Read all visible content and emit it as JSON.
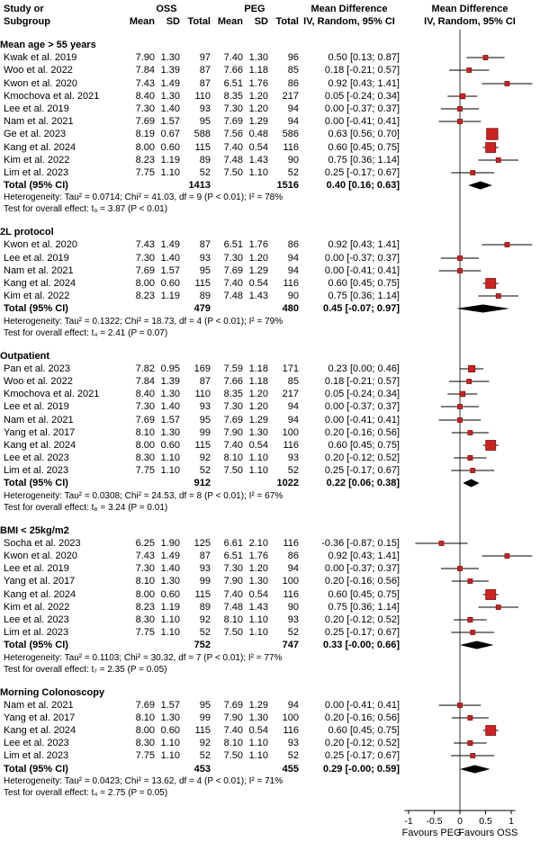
{
  "header": {
    "study_line1": "Study or",
    "study_line2": "Subgroup",
    "group1": "OSS",
    "group2": "PEG",
    "mean": "Mean",
    "sd": "SD",
    "total": "Total",
    "md": "Mean Difference",
    "model": "IV, Random, 95% CI"
  },
  "colors": {
    "marker_fill": "#cc2222",
    "marker_stroke": "#801010",
    "diamond": "#000000",
    "ci_line": "#000000",
    "zero_line": "#333333"
  },
  "chart_data": {
    "type": "forest",
    "effect_measure": "Mean Difference",
    "model": "IV, Random, 95% CI",
    "axis": {
      "min": -1.2,
      "max": 1.2,
      "tick_values": [
        -1,
        -0.5,
        0,
        0.5,
        1
      ],
      "ticks": [
        "-1",
        "-0.5",
        "0",
        "0.5",
        "1"
      ],
      "favours_left": "Favours PEG",
      "favours_right": "Favours OSS"
    },
    "subgroups": [
      {
        "title": "Mean age > 55 years",
        "studies": [
          {
            "study": "Kwak et al. 2019",
            "oss": [
              "7.90",
              "1.30",
              "97"
            ],
            "peg": [
              "7.40",
              "1.30",
              "96"
            ],
            "md": 0.5,
            "lo": 0.13,
            "hi": 0.87,
            "md_text": "0.50 [0.13; 0.87]"
          },
          {
            "study": "Woo et al. 2022",
            "oss": [
              "7.84",
              "1.39",
              "87"
            ],
            "peg": [
              "7.66",
              "1.18",
              "85"
            ],
            "md": 0.18,
            "lo": -0.21,
            "hi": 0.57,
            "md_text": "0.18 [-0.21; 0.57]"
          },
          {
            "study": "Kwon et al. 2020",
            "oss": [
              "7.43",
              "1.49",
              "87"
            ],
            "peg": [
              "6.51",
              "1.76",
              "86"
            ],
            "md": 0.92,
            "lo": 0.43,
            "hi": 1.41,
            "md_text": "0.92 [0.43; 1.41]"
          },
          {
            "study": "Kmochova et al. 2021",
            "oss": [
              "8.40",
              "1.30",
              "110"
            ],
            "peg": [
              "8.35",
              "1.20",
              "217"
            ],
            "md": 0.05,
            "lo": -0.24,
            "hi": 0.34,
            "md_text": "0.05 [-0.24; 0.34]"
          },
          {
            "study": "Lee et al. 2019",
            "oss": [
              "7.30",
              "1.40",
              "93"
            ],
            "peg": [
              "7.30",
              "1.20",
              "94"
            ],
            "md": 0.0,
            "lo": -0.37,
            "hi": 0.37,
            "md_text": "0.00 [-0.37; 0.37]"
          },
          {
            "study": "Nam et al. 2021",
            "oss": [
              "7.69",
              "1.57",
              "95"
            ],
            "peg": [
              "7.69",
              "1.29",
              "94"
            ],
            "md": 0.0,
            "lo": -0.41,
            "hi": 0.41,
            "md_text": "0.00 [-0.41; 0.41]"
          },
          {
            "study": "Ge et al. 2023",
            "oss": [
              "8.19",
              "0.67",
              "588"
            ],
            "peg": [
              "7.56",
              "0.48",
              "586"
            ],
            "md": 0.63,
            "lo": 0.56,
            "hi": 0.7,
            "md_text": "0.63 [0.56; 0.70]"
          },
          {
            "study": "Kang et al. 2024",
            "oss": [
              "8.00",
              "0.60",
              "115"
            ],
            "peg": [
              "7.40",
              "0.54",
              "116"
            ],
            "md": 0.6,
            "lo": 0.45,
            "hi": 0.75,
            "md_text": "0.60 [0.45; 0.75]"
          },
          {
            "study": "Kim et al. 2022",
            "oss": [
              "8.23",
              "1.19",
              "89"
            ],
            "peg": [
              "7.48",
              "1.43",
              "90"
            ],
            "md": 0.75,
            "lo": 0.36,
            "hi": 1.14,
            "md_text": "0.75 [0.36; 1.14]"
          },
          {
            "study": "Lim et al. 2023",
            "oss": [
              "7.75",
              "1.10",
              "52"
            ],
            "peg": [
              "7.50",
              "1.10",
              "52"
            ],
            "md": 0.25,
            "lo": -0.17,
            "hi": 0.67,
            "md_text": "0.25 [-0.17; 0.67]"
          }
        ],
        "total": {
          "label": "Total (95% CI)",
          "oss_total": "1413",
          "peg_total": "1516",
          "md": 0.4,
          "lo": 0.16,
          "hi": 0.63,
          "md_text": "0.40 [0.16; 0.63]"
        },
        "heterogeneity": "Heterogeneity: Tau² = 0.0714; Chi² = 41.03, df = 9 (P < 0.01); I² = 78%",
        "test": "Test for overall effect: t₉ = 3.87 (P < 0.01)"
      },
      {
        "title": "2L protocol",
        "studies": [
          {
            "study": "Kwon et al. 2020",
            "oss": [
              "7.43",
              "1.49",
              "87"
            ],
            "peg": [
              "6.51",
              "1.76",
              "86"
            ],
            "md": 0.92,
            "lo": 0.43,
            "hi": 1.41,
            "md_text": "0.92 [0.43; 1.41]"
          },
          {
            "study": "Lee et al. 2019",
            "oss": [
              "7.30",
              "1.40",
              "93"
            ],
            "peg": [
              "7.30",
              "1.20",
              "94"
            ],
            "md": 0.0,
            "lo": -0.37,
            "hi": 0.37,
            "md_text": "0.00 [-0.37; 0.37]"
          },
          {
            "study": "Nam et al. 2021",
            "oss": [
              "7.69",
              "1.57",
              "95"
            ],
            "peg": [
              "7.69",
              "1.29",
              "94"
            ],
            "md": 0.0,
            "lo": -0.41,
            "hi": 0.41,
            "md_text": "0.00 [-0.41; 0.41]"
          },
          {
            "study": "Kang et al. 2024",
            "oss": [
              "8.00",
              "0.60",
              "115"
            ],
            "peg": [
              "7.40",
              "0.54",
              "116"
            ],
            "md": 0.6,
            "lo": 0.45,
            "hi": 0.75,
            "md_text": "0.60 [0.45; 0.75]"
          },
          {
            "study": "Kim et al. 2022",
            "oss": [
              "8.23",
              "1.19",
              "89"
            ],
            "peg": [
              "7.48",
              "1.43",
              "90"
            ],
            "md": 0.75,
            "lo": 0.36,
            "hi": 1.14,
            "md_text": "0.75 [0.36; 1.14]"
          }
        ],
        "total": {
          "label": "Total (95% CI)",
          "oss_total": "479",
          "peg_total": "480",
          "md": 0.45,
          "lo": -0.07,
          "hi": 0.97,
          "md_text": "0.45 [-0.07; 0.97]"
        },
        "heterogeneity": "Heterogeneity: Tau² = 0.1322; Chi² = 18.73, df = 4 (P < 0.01); I² = 79%",
        "test": "Test for overall effect: t₄ = 2.41 (P = 0.07)"
      },
      {
        "title": "Outpatient",
        "studies": [
          {
            "study": "Pan et al. 2023",
            "oss": [
              "7.82",
              "0.95",
              "169"
            ],
            "peg": [
              "7.59",
              "1.18",
              "171"
            ],
            "md": 0.23,
            "lo": 0.0,
            "hi": 0.46,
            "md_text": "0.23 [0.00; 0.46]"
          },
          {
            "study": "Woo et al. 2022",
            "oss": [
              "7.84",
              "1.39",
              "87"
            ],
            "peg": [
              "7.66",
              "1.18",
              "85"
            ],
            "md": 0.18,
            "lo": -0.21,
            "hi": 0.57,
            "md_text": "0.18 [-0.21; 0.57]"
          },
          {
            "study": "Kmochova et al. 2021",
            "oss": [
              "8.40",
              "1.30",
              "110"
            ],
            "peg": [
              "8.35",
              "1.20",
              "217"
            ],
            "md": 0.05,
            "lo": -0.24,
            "hi": 0.34,
            "md_text": "0.05 [-0.24; 0.34]"
          },
          {
            "study": "Lee et al. 2019",
            "oss": [
              "7.30",
              "1.40",
              "93"
            ],
            "peg": [
              "7.30",
              "1.20",
              "94"
            ],
            "md": 0.0,
            "lo": -0.37,
            "hi": 0.37,
            "md_text": "0.00 [-0.37; 0.37]"
          },
          {
            "study": "Nam et al. 2021",
            "oss": [
              "7.69",
              "1.57",
              "95"
            ],
            "peg": [
              "7.69",
              "1.29",
              "94"
            ],
            "md": 0.0,
            "lo": -0.41,
            "hi": 0.41,
            "md_text": "0.00 [-0.41; 0.41]"
          },
          {
            "study": "Yang et al. 2017",
            "oss": [
              "8.10",
              "1.30",
              "99"
            ],
            "peg": [
              "7.90",
              "1.30",
              "100"
            ],
            "md": 0.2,
            "lo": -0.16,
            "hi": 0.56,
            "md_text": "0.20 [-0.16; 0.56]"
          },
          {
            "study": "Kang et al. 2024",
            "oss": [
              "8.00",
              "0.60",
              "115"
            ],
            "peg": [
              "7.40",
              "0.54",
              "116"
            ],
            "md": 0.6,
            "lo": 0.45,
            "hi": 0.75,
            "md_text": "0.60 [0.45; 0.75]"
          },
          {
            "study": "Lee et al. 2023",
            "oss": [
              "8.30",
              "1.10",
              "92"
            ],
            "peg": [
              "8.10",
              "1.10",
              "93"
            ],
            "md": 0.2,
            "lo": -0.12,
            "hi": 0.52,
            "md_text": "0.20 [-0.12; 0.52]"
          },
          {
            "study": "Lim et al. 2023",
            "oss": [
              "7.75",
              "1.10",
              "52"
            ],
            "peg": [
              "7.50",
              "1.10",
              "52"
            ],
            "md": 0.25,
            "lo": -0.17,
            "hi": 0.67,
            "md_text": "0.25 [-0.17; 0.67]"
          }
        ],
        "total": {
          "label": "Total (95% CI)",
          "oss_total": "912",
          "peg_total": "1022",
          "md": 0.22,
          "lo": 0.06,
          "hi": 0.38,
          "md_text": "0.22 [0.06; 0.38]"
        },
        "heterogeneity": "Heterogeneity: Tau² = 0.0308; Chi² = 24.53, df = 8 (P < 0.01); I² = 67%",
        "test": "Test for overall effect: t₈ = 3.24 (P = 0.01)"
      },
      {
        "title": "BMI < 25kg/m2",
        "studies": [
          {
            "study": "Socha et al. 2023",
            "oss": [
              "6.25",
              "1.90",
              "125"
            ],
            "peg": [
              "6.61",
              "2.10",
              "116"
            ],
            "md": -0.36,
            "lo": -0.87,
            "hi": 0.15,
            "md_text": "-0.36 [-0.87; 0.15]"
          },
          {
            "study": "Kwon et al. 2020",
            "oss": [
              "7.43",
              "1.49",
              "87"
            ],
            "peg": [
              "6.51",
              "1.76",
              "86"
            ],
            "md": 0.92,
            "lo": 0.43,
            "hi": 1.41,
            "md_text": "0.92 [0.43; 1.41]"
          },
          {
            "study": "Lee et al. 2019",
            "oss": [
              "7.30",
              "1.40",
              "93"
            ],
            "peg": [
              "7.30",
              "1.20",
              "94"
            ],
            "md": 0.0,
            "lo": -0.37,
            "hi": 0.37,
            "md_text": "0.00 [-0.37; 0.37]"
          },
          {
            "study": "Yang et al. 2017",
            "oss": [
              "8.10",
              "1.30",
              "99"
            ],
            "peg": [
              "7.90",
              "1.30",
              "100"
            ],
            "md": 0.2,
            "lo": -0.16,
            "hi": 0.56,
            "md_text": "0.20 [-0.16; 0.56]"
          },
          {
            "study": "Kang et al. 2024",
            "oss": [
              "8.00",
              "0.60",
              "115"
            ],
            "peg": [
              "7.40",
              "0.54",
              "116"
            ],
            "md": 0.6,
            "lo": 0.45,
            "hi": 0.75,
            "md_text": "0.60 [0.45; 0.75]"
          },
          {
            "study": "Kim et al. 2022",
            "oss": [
              "8.23",
              "1.19",
              "89"
            ],
            "peg": [
              "7.48",
              "1.43",
              "90"
            ],
            "md": 0.75,
            "lo": 0.36,
            "hi": 1.14,
            "md_text": "0.75 [0.36; 1.14]"
          },
          {
            "study": "Lee et al. 2023",
            "oss": [
              "8.30",
              "1.10",
              "92"
            ],
            "peg": [
              "8.10",
              "1.10",
              "93"
            ],
            "md": 0.2,
            "lo": -0.12,
            "hi": 0.52,
            "md_text": "0.20 [-0.12; 0.52]"
          },
          {
            "study": "Lim et al. 2023",
            "oss": [
              "7.75",
              "1.10",
              "52"
            ],
            "peg": [
              "7.50",
              "1.10",
              "52"
            ],
            "md": 0.25,
            "lo": -0.17,
            "hi": 0.67,
            "md_text": "0.25 [-0.17; 0.67]"
          }
        ],
        "total": {
          "label": "Total (95% CI)",
          "oss_total": "752",
          "peg_total": "747",
          "md": 0.33,
          "lo": 0.0,
          "hi": 0.66,
          "md_text": "0.33 [-0.00; 0.66]"
        },
        "heterogeneity": "Heterogeneity: Tau² = 0.1103; Chi² = 30.32, df = 7 (P < 0.01); I² = 77%",
        "test": "Test for overall effect: t₇ = 2.35 (P = 0.05)"
      },
      {
        "title": "Morning Colonoscopy",
        "studies": [
          {
            "study": "Nam et al. 2021",
            "oss": [
              "7.69",
              "1.57",
              "95"
            ],
            "peg": [
              "7.69",
              "1.29",
              "94"
            ],
            "md": 0.0,
            "lo": -0.41,
            "hi": 0.41,
            "md_text": "0.00 [-0.41; 0.41]"
          },
          {
            "study": "Yang et al. 2017",
            "oss": [
              "8.10",
              "1.30",
              "99"
            ],
            "peg": [
              "7.90",
              "1.30",
              "100"
            ],
            "md": 0.2,
            "lo": -0.16,
            "hi": 0.56,
            "md_text": "0.20 [-0.16; 0.56]"
          },
          {
            "study": "Kang et al. 2024",
            "oss": [
              "8.00",
              "0.60",
              "115"
            ],
            "peg": [
              "7.40",
              "0.54",
              "116"
            ],
            "md": 0.6,
            "lo": 0.45,
            "hi": 0.75,
            "md_text": "0.60 [0.45; 0.75]"
          },
          {
            "study": "Lee et al. 2023",
            "oss": [
              "8.30",
              "1.10",
              "92"
            ],
            "peg": [
              "8.10",
              "1.10",
              "93"
            ],
            "md": 0.2,
            "lo": -0.12,
            "hi": 0.52,
            "md_text": "0.20 [-0.12; 0.52]"
          },
          {
            "study": "Lim et al. 2023",
            "oss": [
              "7.75",
              "1.10",
              "52"
            ],
            "peg": [
              "7.50",
              "1.10",
              "52"
            ],
            "md": 0.25,
            "lo": -0.17,
            "hi": 0.67,
            "md_text": "0.25 [-0.17; 0.67]"
          }
        ],
        "total": {
          "label": "Total (95% CI)",
          "oss_total": "453",
          "peg_total": "455",
          "md": 0.29,
          "lo": 0.0,
          "hi": 0.59,
          "md_text": "0.29 [-0.00; 0.59]"
        },
        "heterogeneity": "Heterogeneity: Tau² = 0.0423; Chi² = 13.62, df = 4 (P < 0.01); I² = 71%",
        "test": "Test for overall effect: t₄ = 2.75 (P = 0.05)"
      }
    ]
  }
}
